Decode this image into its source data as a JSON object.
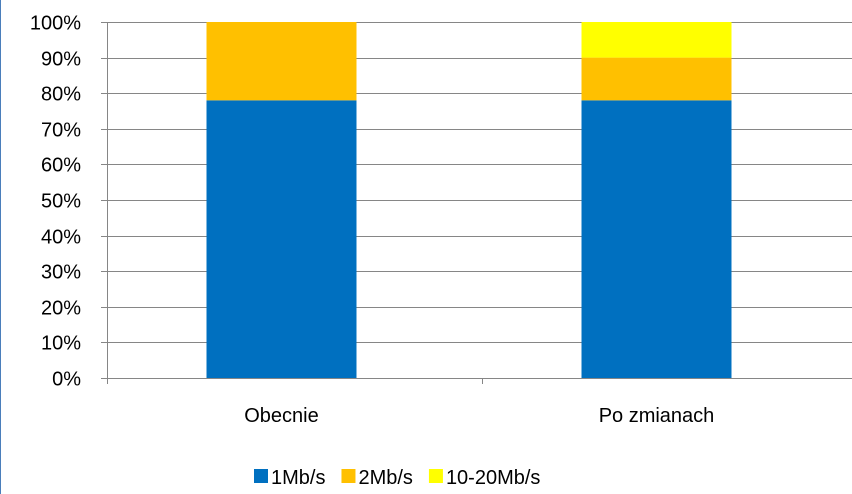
{
  "chart_data": {
    "type": "bar",
    "stacked": true,
    "percent_stacked": true,
    "title": "",
    "xlabel": "",
    "ylabel": "",
    "categories": [
      "Obecnie",
      "Po zmianach"
    ],
    "series": [
      {
        "name": "1Mb/s",
        "values": [
          78,
          78
        ],
        "color": "#0070c0"
      },
      {
        "name": "2Mb/s",
        "values": [
          22,
          12
        ],
        "color": "#ffc000"
      },
      {
        "name": "10-20Mb/s",
        "values": [
          0,
          10
        ],
        "color": "#ffff00"
      }
    ],
    "ylim": [
      0,
      100
    ],
    "yticks": [
      "0%",
      "10%",
      "20%",
      "30%",
      "40%",
      "50%",
      "60%",
      "70%",
      "80%",
      "90%",
      "100%"
    ],
    "grid": true,
    "gridline_color": "#868686",
    "legend_position": "bottom"
  }
}
